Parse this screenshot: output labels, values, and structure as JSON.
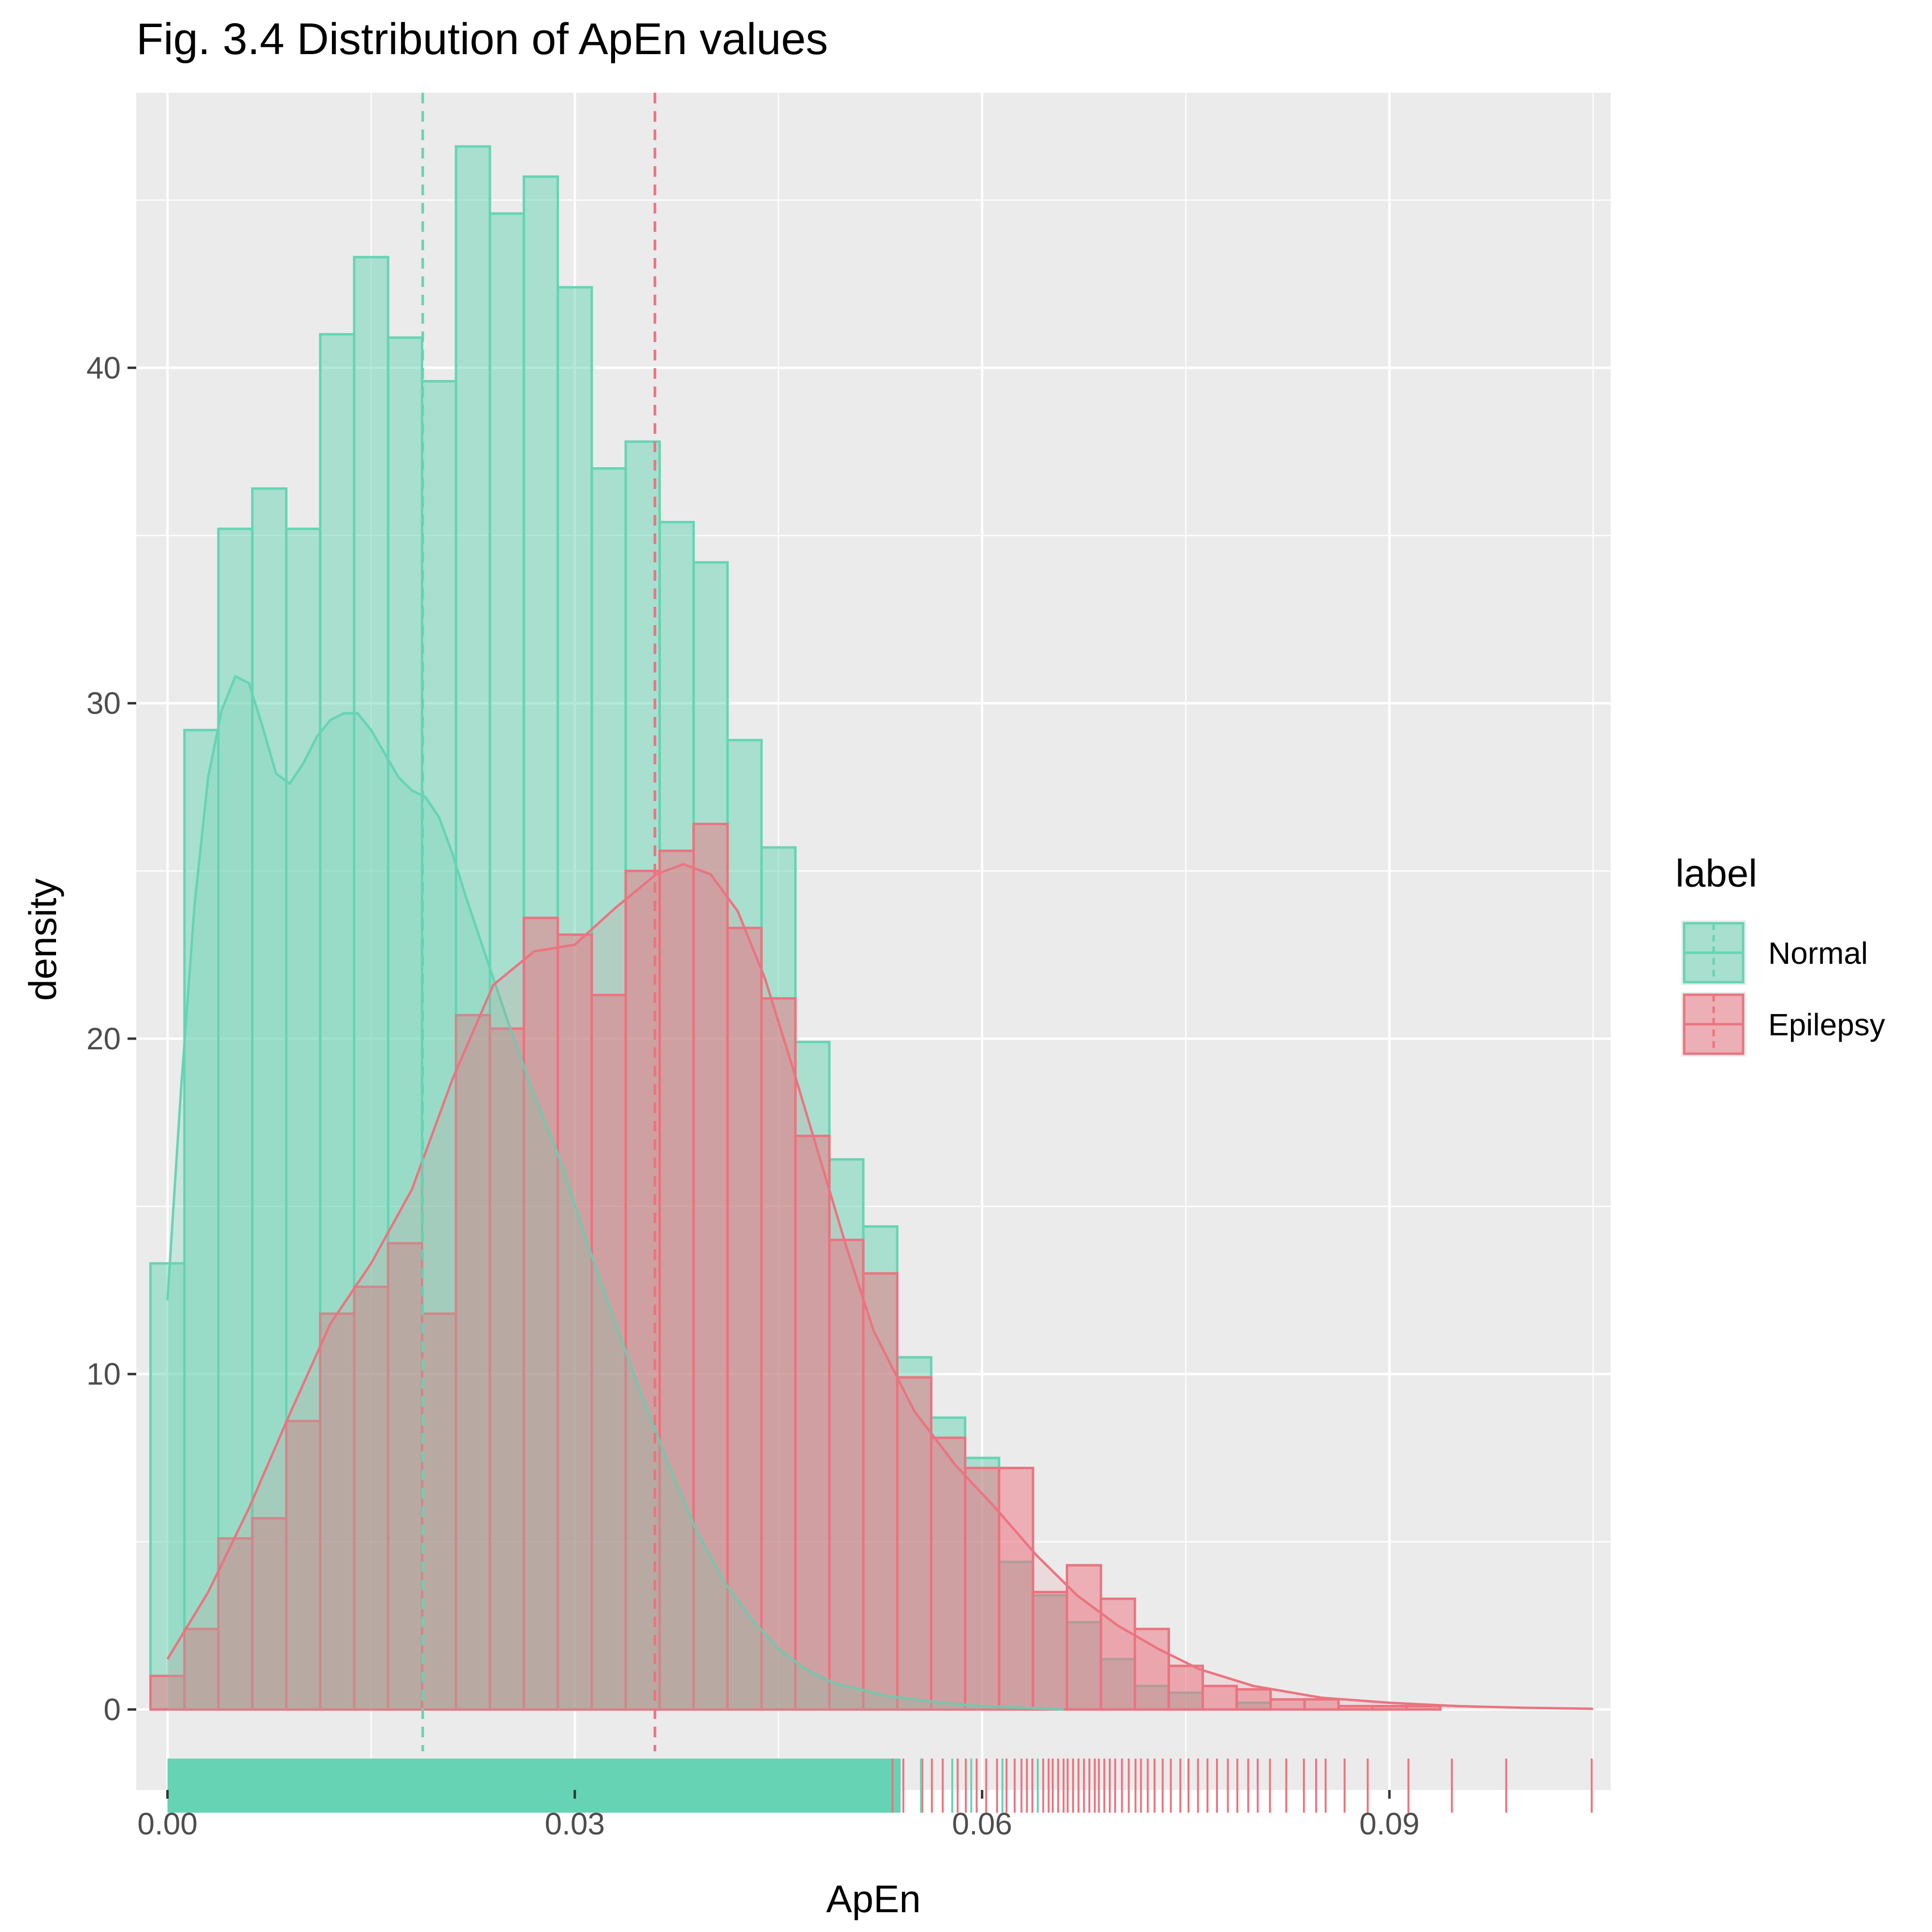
{
  "chart_data": {
    "type": "histogram",
    "title": "Fig. 3.4 Distribution of ApEn values",
    "xlabel": "ApEn",
    "ylabel": "density",
    "xlim": [
      -0.0023,
      0.1063
    ],
    "ylim": [
      -2.4,
      48.2
    ],
    "x_ticks": [
      0.0,
      0.03,
      0.06,
      0.09
    ],
    "x_tick_labels": [
      "0.00",
      "0.03",
      "0.06",
      "0.09"
    ],
    "y_ticks": [
      0,
      10,
      20,
      30,
      40
    ],
    "y_tick_labels": [
      "0",
      "10",
      "20",
      "30",
      "40"
    ],
    "grid": true,
    "legend": {
      "title": "label",
      "position": "right"
    },
    "bin_width": 0.0025,
    "bin_start": -0.00125,
    "series": [
      {
        "name": "Normal",
        "color": "#66D4B4",
        "mean_line": 0.0188,
        "bin_density": [
          13.3,
          29.2,
          35.2,
          36.4,
          35.2,
          41.0,
          43.3,
          40.9,
          39.6,
          46.6,
          44.6,
          45.7,
          42.4,
          37.0,
          37.8,
          35.4,
          34.2,
          28.9,
          25.7,
          19.9,
          16.4,
          14.4,
          10.5,
          8.7,
          7.5,
          4.4,
          3.4,
          2.6,
          1.5,
          0.7,
          0.5,
          0.0,
          0.2,
          0.0,
          0.0,
          0.0,
          0.0,
          0.0,
          0.0,
          0.0,
          0.0,
          0.0,
          0.0
        ],
        "kde_x": [
          0.0,
          0.001,
          0.002,
          0.003,
          0.004,
          0.005,
          0.006,
          0.007,
          0.008,
          0.009,
          0.01,
          0.011,
          0.012,
          0.013,
          0.014,
          0.015,
          0.016,
          0.017,
          0.018,
          0.019,
          0.02,
          0.021,
          0.022,
          0.023,
          0.025,
          0.027,
          0.029,
          0.031,
          0.033,
          0.035,
          0.037,
          0.039,
          0.041,
          0.043,
          0.045,
          0.047,
          0.049,
          0.051,
          0.053,
          0.055,
          0.057,
          0.06,
          0.063,
          0.066
        ],
        "kde_y": [
          12.2,
          18.5,
          24.0,
          27.8,
          29.8,
          30.8,
          30.6,
          29.3,
          27.9,
          27.6,
          28.2,
          29.0,
          29.5,
          29.7,
          29.7,
          29.2,
          28.5,
          27.8,
          27.4,
          27.2,
          26.6,
          25.5,
          24.2,
          23.0,
          20.6,
          18.3,
          16.3,
          13.8,
          11.5,
          9.3,
          7.2,
          5.3,
          3.8,
          2.7,
          1.8,
          1.2,
          0.8,
          0.6,
          0.4,
          0.3,
          0.2,
          0.1,
          0.05,
          0.0
        ],
        "rug_max": 0.054
      },
      {
        "name": "Epilepsy",
        "color": "#EB7480",
        "mean_line": 0.0359,
        "bin_density": [
          1.0,
          2.4,
          5.1,
          5.7,
          8.6,
          11.8,
          12.6,
          13.9,
          11.8,
          20.7,
          20.3,
          23.6,
          23.1,
          21.3,
          25.0,
          25.6,
          26.4,
          23.3,
          21.2,
          17.1,
          14.0,
          13.0,
          9.9,
          8.1,
          7.2,
          7.2,
          3.5,
          4.3,
          3.3,
          2.4,
          1.3,
          0.7,
          0.6,
          0.3,
          0.3,
          0.1,
          0.1,
          0.1,
          0.0,
          0.0,
          0.0,
          0.0,
          0.0
        ],
        "kde_x": [
          0.0,
          0.003,
          0.006,
          0.009,
          0.012,
          0.015,
          0.018,
          0.021,
          0.024,
          0.027,
          0.03,
          0.033,
          0.036,
          0.038,
          0.04,
          0.042,
          0.044,
          0.046,
          0.048,
          0.05,
          0.052,
          0.055,
          0.058,
          0.061,
          0.064,
          0.067,
          0.07,
          0.073,
          0.076,
          0.08,
          0.085,
          0.09,
          0.095,
          0.1,
          0.105
        ],
        "kde_y": [
          1.5,
          3.5,
          6.0,
          8.8,
          11.5,
          13.3,
          15.5,
          18.8,
          21.6,
          22.6,
          22.8,
          23.9,
          24.9,
          25.2,
          24.9,
          23.8,
          21.8,
          19.2,
          16.5,
          13.8,
          11.3,
          8.9,
          7.3,
          6.0,
          4.6,
          3.4,
          2.5,
          1.8,
          1.2,
          0.7,
          0.35,
          0.2,
          0.1,
          0.05,
          0.02
        ],
        "rug_ticks": [
          0.0534,
          0.0542,
          0.0556,
          0.0563,
          0.0571,
          0.0582,
          0.0588,
          0.0596,
          0.0603,
          0.0611,
          0.0618,
          0.0624,
          0.0629,
          0.0633,
          0.0637,
          0.0641,
          0.0645,
          0.0649,
          0.0652,
          0.0656,
          0.066,
          0.0663,
          0.0667,
          0.0671,
          0.0675,
          0.0679,
          0.0683,
          0.0686,
          0.069,
          0.0694,
          0.0698,
          0.0703,
          0.0708,
          0.0713,
          0.0717,
          0.0722,
          0.0727,
          0.0733,
          0.0739,
          0.0746,
          0.0752,
          0.0759,
          0.0766,
          0.0773,
          0.0781,
          0.0788,
          0.0796,
          0.0803,
          0.0812,
          0.0824,
          0.0837,
          0.0846,
          0.0853,
          0.0867,
          0.0884,
          0.0914,
          0.0946,
          0.0986,
          0.1049
        ]
      }
    ]
  }
}
